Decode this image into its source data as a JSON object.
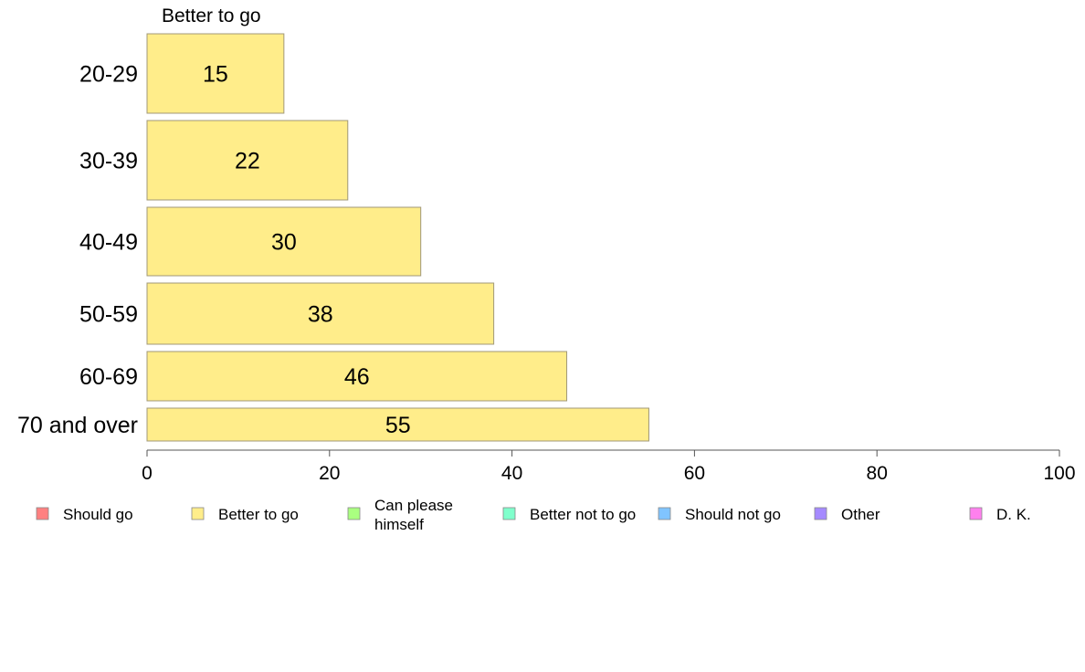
{
  "chart_data": {
    "type": "bar",
    "orientation": "horizontal",
    "series_title": "Better to go",
    "categories": [
      "20-29",
      "30-39",
      "40-49",
      "50-59",
      "60-69",
      "70 and over"
    ],
    "series": [
      {
        "name": "Better to go",
        "values": [
          15,
          22,
          30,
          38,
          46,
          55
        ],
        "color": "#ffed8a"
      }
    ],
    "xlim": [
      0,
      100
    ],
    "xticks": [
      0,
      20,
      40,
      60,
      80,
      100
    ],
    "grid": false,
    "legend_position": "bottom",
    "legend": [
      {
        "label": "Should go",
        "color": "#ff8080"
      },
      {
        "label": "Better to go",
        "color": "#ffed8a"
      },
      {
        "label": "Can please himself",
        "color": "#aaff80"
      },
      {
        "label": "Better not to go",
        "color": "#80ffcc"
      },
      {
        "label": "Should not go",
        "color": "#80c4ff"
      },
      {
        "label": "Other",
        "color": "#a58aff"
      },
      {
        "label": "D. K.",
        "color": "#ff80ee"
      }
    ],
    "bar_stroke": "#a09878"
  }
}
